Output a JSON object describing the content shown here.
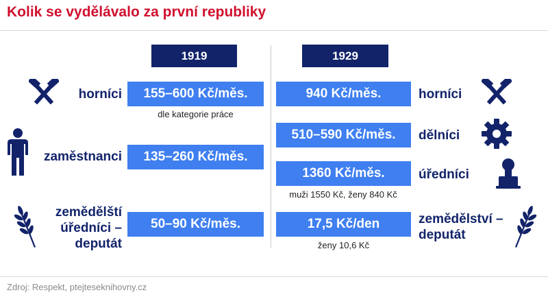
{
  "title": "Kolik se vydělávalo za první republiky",
  "years": {
    "left": "1919",
    "right": "1929"
  },
  "left": {
    "miners": {
      "label": "horníci",
      "value": "155–600 Kč/měs.",
      "note": "dle kategorie práce"
    },
    "employees": {
      "label": "zaměstnanci",
      "value": "135–260 Kč/měs."
    },
    "agri": {
      "label_lines": [
        "zemědělští",
        "úředníci –",
        "deputát"
      ],
      "value": "50–90 Kč/měs."
    }
  },
  "right": {
    "miners": {
      "label": "horníci",
      "value": "940 Kč/měs."
    },
    "workers": {
      "label": "dělníci",
      "value": "510–590 Kč/měs."
    },
    "officials": {
      "label": "úředníci",
      "value": "1360 Kč/měs.",
      "note": "muži 1550 Kč, ženy 840 Kč"
    },
    "agri": {
      "label_lines": [
        "zemědělství –",
        "deputát"
      ],
      "value": "17,5 Kč/den",
      "note": "ženy 10,6 Kč"
    }
  },
  "source": "Zdroj: Respekt, ptejteseknihovny.cz",
  "colors": {
    "title": "#d0102e",
    "navy": "#12236a",
    "box": "#3f7ff0"
  },
  "icons": [
    "hammers-icon",
    "person-icon",
    "wheat-icon",
    "gear-icon",
    "stamp-icon"
  ]
}
